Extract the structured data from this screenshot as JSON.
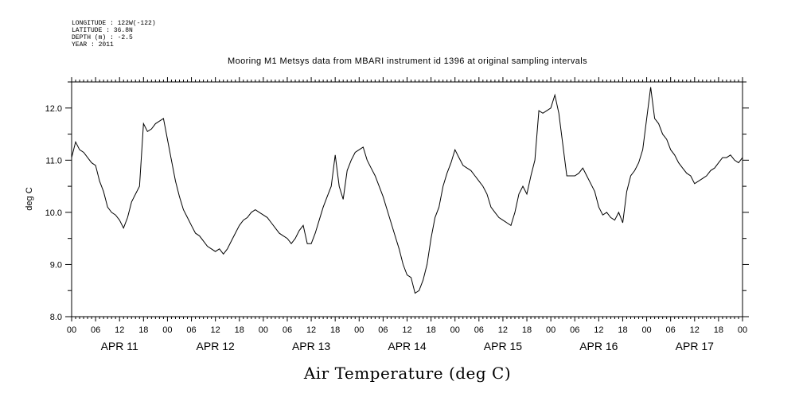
{
  "meta": {
    "longitude": "LONGITUDE : 122W(-122)",
    "latitude": "LATITUDE : 36.8N",
    "depth": "DEPTH (m) : -2.5",
    "year": "YEAR : 2011"
  },
  "chart_data": {
    "type": "line",
    "title": "Mooring M1 Metsys data from MBARI instrument id 1396 at original sampling intervals",
    "xlabel": "Air Temperature (deg C)",
    "ylabel": "deg C",
    "ylim": [
      8.0,
      12.5
    ],
    "yticks": [
      "8.0",
      "9.0",
      "10.0",
      "11.0",
      "12.0"
    ],
    "ytick_values": [
      8.0,
      9.0,
      10.0,
      11.0,
      12.0
    ],
    "xlim_hours": [
      0,
      168
    ],
    "xtick_labels": [
      "00",
      "06",
      "12",
      "18",
      "00",
      "06",
      "12",
      "18",
      "00",
      "06",
      "12",
      "18",
      "00",
      "06",
      "12",
      "18",
      "00",
      "06",
      "12",
      "18",
      "00",
      "06",
      "12",
      "18",
      "00",
      "06",
      "12",
      "18",
      "00"
    ],
    "day_labels": [
      "APR 11",
      "APR 12",
      "APR 13",
      "APR 14",
      "APR 15",
      "APR 16",
      "APR 17"
    ],
    "grid": false,
    "series": [
      {
        "color": "#000000",
        "x_hours": [
          0,
          1,
          2,
          3,
          4,
          5,
          6,
          7,
          8,
          9,
          10,
          11,
          12,
          13,
          14,
          15,
          16,
          17,
          18,
          19,
          20,
          21,
          22,
          23,
          24,
          25,
          26,
          27,
          28,
          29,
          30,
          31,
          32,
          33,
          34,
          35,
          36,
          37,
          38,
          39,
          40,
          41,
          42,
          43,
          44,
          45,
          46,
          47,
          48,
          49,
          50,
          51,
          52,
          53,
          54,
          55,
          56,
          57,
          58,
          59,
          60,
          61,
          62,
          63,
          64,
          65,
          66,
          67,
          68,
          69,
          70,
          71,
          72,
          73,
          74,
          75,
          76,
          77,
          78,
          79,
          80,
          81,
          82,
          83,
          84,
          85,
          86,
          87,
          88,
          89,
          90,
          91,
          92,
          93,
          94,
          95,
          96,
          97,
          98,
          99,
          100,
          101,
          102,
          103,
          104,
          105,
          106,
          107,
          108,
          109,
          110,
          111,
          112,
          113,
          114,
          115,
          116,
          117,
          118,
          119,
          120,
          121,
          122,
          123,
          124,
          125,
          126,
          127,
          128,
          129,
          130,
          131,
          132,
          133,
          134,
          135,
          136,
          137,
          138,
          139,
          140,
          141,
          142,
          143,
          144,
          145,
          146,
          147,
          148,
          149,
          150,
          151,
          152,
          153,
          154,
          155,
          156,
          157,
          158,
          159,
          160,
          161,
          162,
          163,
          164,
          165,
          166,
          167,
          168
        ],
        "values": [
          11.05,
          11.35,
          11.2,
          11.15,
          11.05,
          10.95,
          10.9,
          10.6,
          10.4,
          10.1,
          10.0,
          9.95,
          9.85,
          9.7,
          9.9,
          10.2,
          10.35,
          10.5,
          11.7,
          11.55,
          11.6,
          11.7,
          11.75,
          11.8,
          11.4,
          11.0,
          10.6,
          10.3,
          10.05,
          9.9,
          9.75,
          9.6,
          9.55,
          9.45,
          9.35,
          9.3,
          9.25,
          9.3,
          9.2,
          9.3,
          9.45,
          9.6,
          9.75,
          9.85,
          9.9,
          10.0,
          10.05,
          10.0,
          9.95,
          9.9,
          9.8,
          9.7,
          9.6,
          9.55,
          9.5,
          9.4,
          9.5,
          9.65,
          9.75,
          9.4,
          9.4,
          9.6,
          9.85,
          10.1,
          10.3,
          10.5,
          11.1,
          10.5,
          10.25,
          10.8,
          11.0,
          11.15,
          11.2,
          11.25,
          11.0,
          10.85,
          10.7,
          10.5,
          10.3,
          10.05,
          9.8,
          9.55,
          9.3,
          9.0,
          8.8,
          8.75,
          8.45,
          8.5,
          8.7,
          9.0,
          9.5,
          9.9,
          10.1,
          10.5,
          10.75,
          10.95,
          11.2,
          11.05,
          10.9,
          10.85,
          10.8,
          10.7,
          10.6,
          10.5,
          10.35,
          10.1,
          10.0,
          9.9,
          9.85,
          9.8,
          9.75,
          10.0,
          10.35,
          10.5,
          10.35,
          10.7,
          11.0,
          11.95,
          11.9,
          11.95,
          12.0,
          12.25,
          11.9,
          11.3,
          10.7,
          10.7,
          10.7,
          10.75,
          10.85,
          10.7,
          10.55,
          10.4,
          10.1,
          9.95,
          10.0,
          9.9,
          9.85,
          10.0,
          9.8,
          10.4,
          10.7,
          10.8,
          10.95,
          11.2,
          11.8,
          12.4,
          11.8,
          11.7,
          11.5,
          11.4,
          11.2,
          11.1,
          10.95,
          10.85,
          10.75,
          10.7,
          10.55,
          10.6,
          10.65,
          10.7,
          10.8,
          10.85,
          10.95,
          11.05,
          11.05,
          11.1,
          11.0,
          10.95,
          11.05
        ]
      }
    ]
  }
}
